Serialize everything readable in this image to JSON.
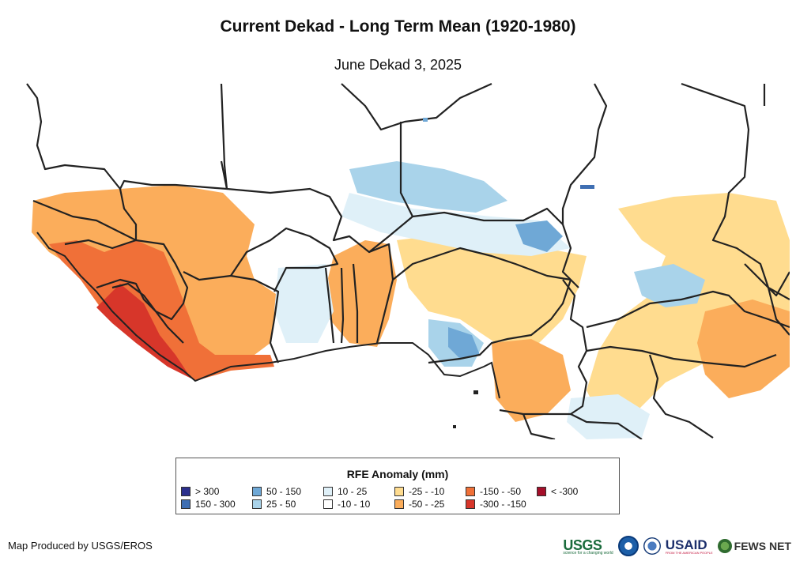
{
  "title": "Current Dekad - Long Term Mean (1920-1980)",
  "subtitle": "June Dekad 3, 2025",
  "legend": {
    "title": "RFE Anomaly (mm)",
    "items": [
      {
        "label": "> 300",
        "color": "#2b2f8c"
      },
      {
        "label": "150 - 300",
        "color": "#3f6fb3"
      },
      {
        "label": "50 - 150",
        "color": "#6fa8d6"
      },
      {
        "label": "25 - 50",
        "color": "#a9d3ea"
      },
      {
        "label": "10 - 25",
        "color": "#dff0f8"
      },
      {
        "label": "-10 - 10",
        "color": "#ffffff"
      },
      {
        "label": "-25 - -10",
        "color": "#ffdc8f"
      },
      {
        "label": "-50 - -25",
        "color": "#fbad5b"
      },
      {
        "label": "-150 - -50",
        "color": "#f07038"
      },
      {
        "label": "-300 - -150",
        "color": "#d7362a"
      },
      {
        "label": "< -300",
        "color": "#a50f2a"
      }
    ]
  },
  "credit": "Map Produced by USGS/EROS",
  "logos": {
    "usgs": "USGS",
    "usgs_tagline": "science for a changing world",
    "usaid": "USAID",
    "usaid_tagline": "FROM THE AMERICAN PEOPLE",
    "fews": "FEWS NET"
  }
}
